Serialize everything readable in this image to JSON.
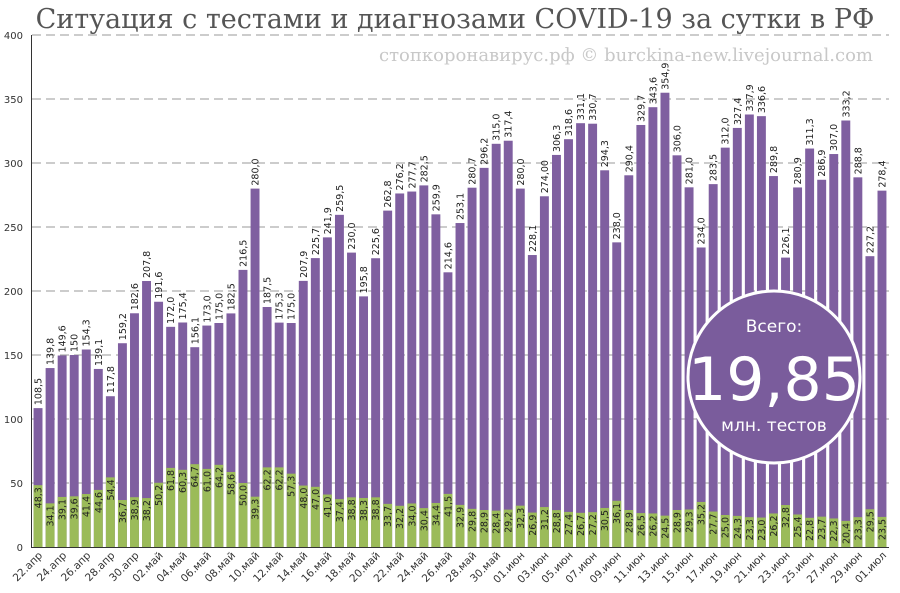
{
  "chart_data": {
    "type": "bar",
    "stacked": true,
    "title": "Ситуация с тестами и диагнозами COVID-19 за сутки в РФ",
    "watermark": "стопкоронавирус.рф © burckina-new.livejournal.com",
    "ylim": [
      0,
      400
    ],
    "yticks": [
      "0",
      "50",
      "100",
      "150",
      "200",
      "250",
      "300",
      "350",
      "400"
    ],
    "grid": true,
    "colors": {
      "tests": "#7f5fa0",
      "diagnoses": "#9bbb59",
      "badge": "#7a5c9c"
    },
    "categories": [
      "22.апр",
      "23.апр",
      "24.апр",
      "25.апр",
      "26.апр",
      "27.апр",
      "28.апр",
      "29.апр",
      "30.апр",
      "01.май",
      "02.май",
      "03.май",
      "04.май",
      "05.май",
      "06.май",
      "07.май",
      "08.май",
      "09.май",
      "10.май",
      "11.май",
      "12.май",
      "13.май",
      "14.май",
      "15.май",
      "16.май",
      "17.май",
      "18.май",
      "19.май",
      "20.май",
      "21.май",
      "22.май",
      "23.май",
      "24.май",
      "25.май",
      "26.май",
      "27.май",
      "28.май",
      "29.май",
      "30.май",
      "31.май",
      "01.июн",
      "02.июн",
      "03.июн",
      "04.июн",
      "05.июн",
      "06.июн",
      "07.июн",
      "08.июн",
      "09.июн",
      "10.июн",
      "11.июн",
      "12.июн",
      "13.июн",
      "14.июн",
      "15.июн",
      "16.июн",
      "17.июн",
      "18.июн",
      "19.июн",
      "20.июн",
      "21.июн",
      "22.июн",
      "23.июн",
      "24.июн",
      "25.июн",
      "26.июн",
      "27.июн",
      "28.июн",
      "29.июн",
      "30.июн",
      "01.июл"
    ],
    "x_tick_labels": [
      "22.апр",
      "24.апр",
      "26.апр",
      "28.апр",
      "30.апр",
      "02.май",
      "04.май",
      "06.май",
      "08.май",
      "10.май",
      "12.май",
      "14.май",
      "16.май",
      "18.май",
      "20.май",
      "22.май",
      "24.май",
      "26.май",
      "28.май",
      "30.май",
      "01.июн",
      "03.июн",
      "05.июн",
      "07.июн",
      "09.июн",
      "11.июн",
      "13.июн",
      "15.июн",
      "17.июн",
      "19.июн",
      "21.июн",
      "23.июн",
      "25.июн",
      "27.июн",
      "29.июн",
      "01.июл"
    ],
    "series": [
      {
        "name": "tests",
        "values": [
          108.5,
          139.8,
          149.6,
          150,
          154.3,
          139.1,
          117.8,
          159.2,
          182.6,
          207.8,
          191.6,
          172.0,
          175.4,
          156.1,
          173.0,
          175.0,
          182.5,
          216.5,
          280.0,
          187.5,
          175.3,
          175.0,
          207.9,
          225.7,
          241.9,
          259.5,
          230.0,
          195.8,
          225.6,
          262.8,
          276.2,
          277.7,
          282.5,
          259.9,
          214.6,
          253.1,
          280.7,
          296.2,
          315.0,
          317.4,
          280.0,
          228.1,
          274.0,
          306.3,
          318.6,
          331.1,
          330.7,
          294.3,
          238.0,
          290.4,
          329.7,
          343.6,
          354.9,
          306.0,
          281.0,
          234.0,
          283.5,
          312.0,
          327.4,
          337.9,
          336.6,
          289.8,
          226.1,
          280.9,
          311.3,
          286.9,
          307.0,
          333.2,
          288.8,
          227.2,
          278.4
        ],
        "labels": [
          "108,5",
          "139,8",
          "149,6",
          "150",
          "154,3",
          "139,1",
          "117,8",
          "159,2",
          "182,6",
          "207,8",
          "191,6",
          "172,0",
          "175,4",
          "156,1",
          "173,0",
          "175,0",
          "182,5",
          "216,5",
          "280,0",
          "187,5",
          "175,3",
          "175,0",
          "207,9",
          "225,7",
          "241,9",
          "259,5",
          "230,0",
          "195,8",
          "225,6",
          "262,8",
          "276,2",
          "277,7",
          "282,5",
          "259,9",
          "214,6",
          "253,1",
          "280,7",
          "296,2",
          "315,0",
          "317,4",
          "280,0",
          "228,1",
          "274,00",
          "306,3",
          "318,6",
          "331,1",
          "330,7",
          "294,3",
          "238,0",
          "290,4",
          "329,7",
          "343,6",
          "354,9",
          "306,0",
          "281,0",
          "234,0",
          "283,5",
          "312,0",
          "327,4",
          "337,9",
          "336,6",
          "289,8",
          "226,1",
          "280,9",
          "311,3",
          "286,9",
          "307,0",
          "333,2",
          "288,8",
          "227,2",
          "278,4"
        ]
      },
      {
        "name": "diagnoses",
        "values": [
          48.3,
          34.1,
          39.1,
          39.6,
          41.4,
          44.6,
          54.4,
          36.7,
          38.9,
          38.2,
          50.2,
          61.8,
          60.3,
          64.7,
          61.0,
          64.2,
          58.6,
          50.0,
          39.3,
          62.2,
          62.2,
          57.3,
          48.0,
          47.0,
          41.0,
          37.4,
          38.8,
          38.3,
          38.8,
          33.7,
          32.2,
          34.0,
          30.4,
          34.4,
          41.5,
          32.9,
          29.8,
          28.9,
          28.4,
          29.2,
          32.3,
          26.9,
          31.2,
          28.8,
          27.4,
          26.7,
          27.2,
          30.5,
          36.1,
          28.9,
          26.5,
          26.2,
          24.5,
          28.9,
          29.3,
          35.2,
          27.7,
          25.0,
          24.3,
          23.3,
          23.0,
          26.2,
          32.8,
          25.4,
          22.8,
          23.7,
          22.3,
          20.4,
          23.3,
          29.5,
          23.5
        ],
        "labels": [
          "48,3",
          "34,1",
          "39,1",
          "39,6",
          "41,4",
          "44,6",
          "54,4",
          "36,7",
          "38,9",
          "38,2",
          "50,2",
          "61,8",
          "60,3",
          "64,7",
          "61,0",
          "64,2",
          "58,6",
          "50,0",
          "39,3",
          "62,2",
          "62,2",
          "57,3",
          "48,0",
          "47,0",
          "41,0",
          "37,4",
          "38,8",
          "38,3",
          "38,8",
          "33,7",
          "32,2",
          "34,0",
          "30,4",
          "34,4",
          "41,5",
          "32,9",
          "29,8",
          "28,9",
          "28,4",
          "29,2",
          "32,3",
          "26,9",
          "31,2",
          "28,8",
          "27,4",
          "26,7",
          "27,2",
          "30,5",
          "36,1",
          "28,9",
          "26,5",
          "26,2",
          "24,5",
          "28,9",
          "29,3",
          "35,2",
          "27,7",
          "25,0",
          "24,3",
          "23,3",
          "23,0",
          "26,2",
          "32,8",
          "25,4",
          "22,8",
          "23,7",
          "22,3",
          "20,4",
          "23,3",
          "29,5",
          "23,5"
        ]
      }
    ]
  },
  "summary_badge": {
    "label": "Всего:",
    "value": "19,85",
    "unit": "млн. тестов"
  }
}
